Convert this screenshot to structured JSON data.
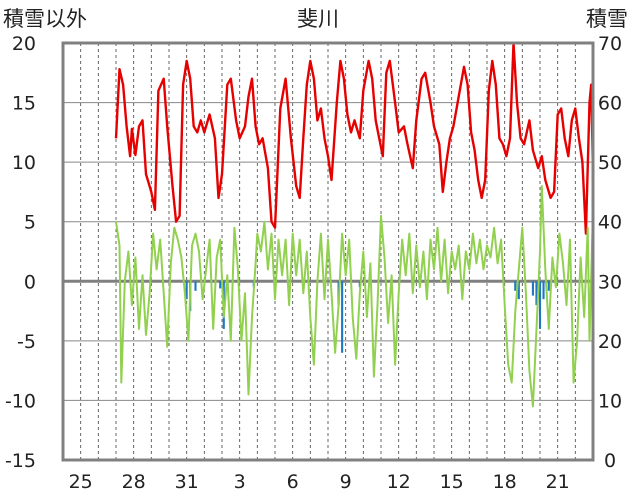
{
  "chart_data": {
    "type": "line",
    "title": "斐川",
    "y_left_label": "積雪以外",
    "y_right_label": "積雪",
    "ylim_left": [
      -15,
      20
    ],
    "ylim_right": [
      0,
      70
    ],
    "y_left_ticks": [
      "20",
      "15",
      "10",
      "5",
      "0",
      "-5",
      "-10",
      "-15"
    ],
    "y_right_ticks": [
      "70",
      "60",
      "50",
      "40",
      "30",
      "20",
      "10",
      "0"
    ],
    "x_tick_labels": [
      "25",
      "28",
      "31",
      "3",
      "6",
      "9",
      "12",
      "15",
      "18",
      "21"
    ],
    "x_days_range": [
      0,
      30
    ],
    "x_tick_days": [
      1,
      4,
      7,
      10,
      13,
      16,
      19,
      22,
      25,
      28
    ],
    "grid": {
      "horizontal": true,
      "vertical_dashed_daily": true
    },
    "colors": {
      "max_temp": "#e60000",
      "min_temp": "#92d050",
      "precip": "#1f77c4",
      "zero_line": "#808080",
      "frame": "#808080"
    },
    "series": [
      {
        "key": "max_temp",
        "axis": "left",
        "points": [
          [
            3.0,
            12.0
          ],
          [
            3.2,
            17.8
          ],
          [
            3.4,
            16.5
          ],
          [
            3.6,
            13.0
          ],
          [
            3.8,
            10.5
          ],
          [
            3.9,
            12.8
          ],
          [
            4.1,
            10.6
          ],
          [
            4.3,
            13.0
          ],
          [
            4.5,
            13.5
          ],
          [
            4.7,
            9.0
          ],
          [
            5.0,
            7.5
          ],
          [
            5.2,
            6.0
          ],
          [
            5.4,
            16.0
          ],
          [
            5.7,
            17.0
          ],
          [
            5.9,
            13.0
          ],
          [
            6.2,
            8.0
          ],
          [
            6.4,
            5.0
          ],
          [
            6.6,
            5.5
          ],
          [
            6.8,
            16.5
          ],
          [
            7.0,
            18.5
          ],
          [
            7.2,
            17.0
          ],
          [
            7.4,
            13.0
          ],
          [
            7.6,
            12.5
          ],
          [
            7.8,
            13.5
          ],
          [
            8.0,
            12.5
          ],
          [
            8.3,
            14.0
          ],
          [
            8.6,
            12.0
          ],
          [
            8.8,
            7.0
          ],
          [
            9.0,
            9.0
          ],
          [
            9.3,
            16.5
          ],
          [
            9.5,
            17.0
          ],
          [
            9.8,
            13.5
          ],
          [
            10.0,
            12.0
          ],
          [
            10.3,
            13.0
          ],
          [
            10.5,
            15.5
          ],
          [
            10.7,
            17.0
          ],
          [
            10.9,
            13.0
          ],
          [
            11.1,
            11.5
          ],
          [
            11.3,
            12.0
          ],
          [
            11.6,
            9.5
          ],
          [
            11.8,
            5.0
          ],
          [
            12.0,
            4.5
          ],
          [
            12.3,
            14.5
          ],
          [
            12.6,
            17.0
          ],
          [
            12.9,
            12.0
          ],
          [
            13.2,
            8.0
          ],
          [
            13.4,
            7.0
          ],
          [
            13.6,
            12.0
          ],
          [
            13.8,
            16.5
          ],
          [
            14.0,
            18.5
          ],
          [
            14.2,
            17.0
          ],
          [
            14.4,
            13.5
          ],
          [
            14.6,
            14.5
          ],
          [
            14.8,
            12.0
          ],
          [
            15.0,
            10.5
          ],
          [
            15.2,
            8.5
          ],
          [
            15.5,
            15.0
          ],
          [
            15.7,
            18.5
          ],
          [
            15.9,
            17.0
          ],
          [
            16.1,
            14.0
          ],
          [
            16.3,
            12.5
          ],
          [
            16.5,
            13.5
          ],
          [
            16.8,
            12.0
          ],
          [
            17.0,
            16.0
          ],
          [
            17.3,
            18.5
          ],
          [
            17.5,
            17.0
          ],
          [
            17.7,
            13.5
          ],
          [
            17.9,
            12.0
          ],
          [
            18.1,
            10.5
          ],
          [
            18.3,
            17.5
          ],
          [
            18.5,
            18.5
          ],
          [
            18.8,
            15.0
          ],
          [
            19.0,
            12.5
          ],
          [
            19.3,
            13.0
          ],
          [
            19.5,
            11.5
          ],
          [
            19.8,
            9.5
          ],
          [
            20.0,
            13.5
          ],
          [
            20.3,
            17.0
          ],
          [
            20.5,
            17.5
          ],
          [
            20.8,
            15.0
          ],
          [
            21.0,
            13.0
          ],
          [
            21.3,
            11.5
          ],
          [
            21.5,
            7.5
          ],
          [
            21.7,
            10.0
          ],
          [
            21.9,
            12.0
          ],
          [
            22.1,
            13.0
          ],
          [
            22.4,
            15.5
          ],
          [
            22.7,
            18.0
          ],
          [
            22.9,
            16.5
          ],
          [
            23.1,
            12.5
          ],
          [
            23.3,
            11.0
          ],
          [
            23.5,
            8.5
          ],
          [
            23.7,
            7.0
          ],
          [
            23.9,
            8.5
          ],
          [
            24.1,
            16.0
          ],
          [
            24.3,
            18.5
          ],
          [
            24.5,
            16.5
          ],
          [
            24.7,
            12.0
          ],
          [
            24.9,
            11.5
          ],
          [
            25.1,
            10.5
          ],
          [
            25.3,
            12.0
          ],
          [
            25.5,
            20.0
          ],
          [
            25.7,
            15.0
          ],
          [
            25.9,
            12.0
          ],
          [
            26.1,
            11.5
          ],
          [
            26.4,
            13.5
          ],
          [
            26.6,
            11.0
          ],
          [
            26.9,
            9.5
          ],
          [
            27.1,
            10.5
          ],
          [
            27.3,
            8.5
          ],
          [
            27.6,
            7.0
          ],
          [
            27.8,
            7.5
          ],
          [
            28.0,
            14.0
          ],
          [
            28.2,
            14.5
          ],
          [
            28.4,
            12.0
          ],
          [
            28.6,
            10.5
          ],
          [
            28.8,
            13.5
          ],
          [
            29.0,
            14.5
          ],
          [
            29.2,
            12.0
          ],
          [
            29.4,
            10.0
          ],
          [
            29.6,
            4.0
          ],
          [
            29.8,
            15.0
          ],
          [
            29.9,
            16.5
          ],
          [
            30.0,
            9.0
          ]
        ]
      },
      {
        "key": "min_temp",
        "axis": "left",
        "points": [
          [
            3.0,
            5.0
          ],
          [
            3.2,
            3.0
          ],
          [
            3.3,
            -8.5
          ],
          [
            3.5,
            0.0
          ],
          [
            3.7,
            2.5
          ],
          [
            3.9,
            -2.0
          ],
          [
            4.1,
            2.0
          ],
          [
            4.3,
            -4.0
          ],
          [
            4.5,
            0.5
          ],
          [
            4.7,
            -4.5
          ],
          [
            4.9,
            -1.0
          ],
          [
            5.1,
            4.0
          ],
          [
            5.3,
            1.0
          ],
          [
            5.5,
            3.5
          ],
          [
            5.7,
            -1.0
          ],
          [
            5.9,
            -5.5
          ],
          [
            6.1,
            1.5
          ],
          [
            6.3,
            4.5
          ],
          [
            6.5,
            3.5
          ],
          [
            6.7,
            2.0
          ],
          [
            6.9,
            -1.0
          ],
          [
            7.1,
            -5.0
          ],
          [
            7.3,
            3.0
          ],
          [
            7.5,
            4.0
          ],
          [
            7.7,
            2.5
          ],
          [
            7.9,
            -1.5
          ],
          [
            8.1,
            1.0
          ],
          [
            8.3,
            3.5
          ],
          [
            8.5,
            -4.0
          ],
          [
            8.7,
            2.0
          ],
          [
            8.9,
            3.5
          ],
          [
            9.1,
            -3.0
          ],
          [
            9.3,
            0.5
          ],
          [
            9.5,
            -5.0
          ],
          [
            9.7,
            4.5
          ],
          [
            9.9,
            1.0
          ],
          [
            10.1,
            -5.0
          ],
          [
            10.3,
            -1.0
          ],
          [
            10.5,
            -9.5
          ],
          [
            10.7,
            -3.0
          ],
          [
            10.9,
            1.5
          ],
          [
            11.0,
            4.0
          ],
          [
            11.2,
            2.5
          ],
          [
            11.4,
            5.0
          ],
          [
            11.6,
            1.0
          ],
          [
            11.8,
            4.0
          ],
          [
            12.0,
            -1.5
          ],
          [
            12.2,
            3.5
          ],
          [
            12.4,
            0.5
          ],
          [
            12.6,
            3.5
          ],
          [
            12.8,
            -2.0
          ],
          [
            13.0,
            4.0
          ],
          [
            13.2,
            0.5
          ],
          [
            13.4,
            3.5
          ],
          [
            13.6,
            -1.0
          ],
          [
            13.8,
            2.5
          ],
          [
            14.0,
            -3.0
          ],
          [
            14.2,
            -7.0
          ],
          [
            14.4,
            0.0
          ],
          [
            14.6,
            4.0
          ],
          [
            14.8,
            -1.5
          ],
          [
            15.0,
            3.5
          ],
          [
            15.2,
            -1.0
          ],
          [
            15.4,
            -6.0
          ],
          [
            15.6,
            -2.0
          ],
          [
            15.8,
            4.0
          ],
          [
            16.0,
            0.5
          ],
          [
            16.2,
            3.5
          ],
          [
            16.4,
            -3.0
          ],
          [
            16.6,
            -6.5
          ],
          [
            16.8,
            -1.0
          ],
          [
            17.0,
            2.5
          ],
          [
            17.2,
            -3.0
          ],
          [
            17.4,
            1.5
          ],
          [
            17.6,
            -8.0
          ],
          [
            17.8,
            -2.0
          ],
          [
            18.0,
            5.5
          ],
          [
            18.2,
            2.0
          ],
          [
            18.4,
            -3.5
          ],
          [
            18.6,
            0.5
          ],
          [
            18.8,
            -7.0
          ],
          [
            19.0,
            -1.0
          ],
          [
            19.2,
            3.5
          ],
          [
            19.4,
            0.5
          ],
          [
            19.6,
            4.0
          ],
          [
            19.8,
            -1.0
          ],
          [
            20.0,
            3.0
          ],
          [
            20.2,
            -0.5
          ],
          [
            20.4,
            2.5
          ],
          [
            20.6,
            -1.5
          ],
          [
            20.8,
            3.5
          ],
          [
            21.0,
            1.0
          ],
          [
            21.2,
            4.5
          ],
          [
            21.4,
            0.0
          ],
          [
            21.6,
            3.5
          ],
          [
            21.8,
            -1.0
          ],
          [
            22.0,
            2.5
          ],
          [
            22.2,
            1.0
          ],
          [
            22.4,
            3.0
          ],
          [
            22.6,
            -1.5
          ],
          [
            22.8,
            2.5
          ],
          [
            23.0,
            1.0
          ],
          [
            23.2,
            4.0
          ],
          [
            23.4,
            1.5
          ],
          [
            23.6,
            3.5
          ],
          [
            23.8,
            1.0
          ],
          [
            24.0,
            3.0
          ],
          [
            24.2,
            2.0
          ],
          [
            24.4,
            4.5
          ],
          [
            24.6,
            1.5
          ],
          [
            24.8,
            3.5
          ],
          [
            25.0,
            -2.0
          ],
          [
            25.2,
            -7.0
          ],
          [
            25.4,
            -8.5
          ],
          [
            25.6,
            -2.5
          ],
          [
            25.8,
            1.0
          ],
          [
            26.0,
            4.5
          ],
          [
            26.2,
            -1.0
          ],
          [
            26.4,
            -7.5
          ],
          [
            26.6,
            -10.5
          ],
          [
            26.8,
            -4.0
          ],
          [
            27.0,
            2.5
          ],
          [
            27.1,
            8.0
          ],
          [
            27.3,
            1.0
          ],
          [
            27.5,
            -4.0
          ],
          [
            27.7,
            2.0
          ],
          [
            27.9,
            -0.5
          ],
          [
            28.1,
            4.0
          ],
          [
            28.3,
            1.5
          ],
          [
            28.5,
            -2.0
          ],
          [
            28.7,
            3.5
          ],
          [
            28.9,
            -8.5
          ],
          [
            29.1,
            -5.0
          ],
          [
            29.3,
            2.0
          ],
          [
            29.5,
            -3.0
          ],
          [
            29.7,
            4.5
          ],
          [
            29.8,
            -5.0
          ],
          [
            30.0,
            6.0
          ]
        ]
      }
    ],
    "precip_bars": {
      "axis": "left",
      "values": [
        [
          7.0,
          -1.5
        ],
        [
          7.2,
          -2.5
        ],
        [
          7.5,
          -0.8
        ],
        [
          8.9,
          -0.6
        ],
        [
          9.1,
          -4.0
        ],
        [
          10.8,
          -0.5
        ],
        [
          15.6,
          -2.0
        ],
        [
          15.8,
          -6.0
        ],
        [
          16.8,
          -0.5
        ],
        [
          25.6,
          -0.8
        ],
        [
          25.8,
          -1.5
        ],
        [
          26.6,
          -1.2
        ],
        [
          26.8,
          -2.0
        ],
        [
          27.0,
          -4.0
        ],
        [
          27.2,
          -1.5
        ],
        [
          27.5,
          -0.8
        ]
      ]
    }
  }
}
